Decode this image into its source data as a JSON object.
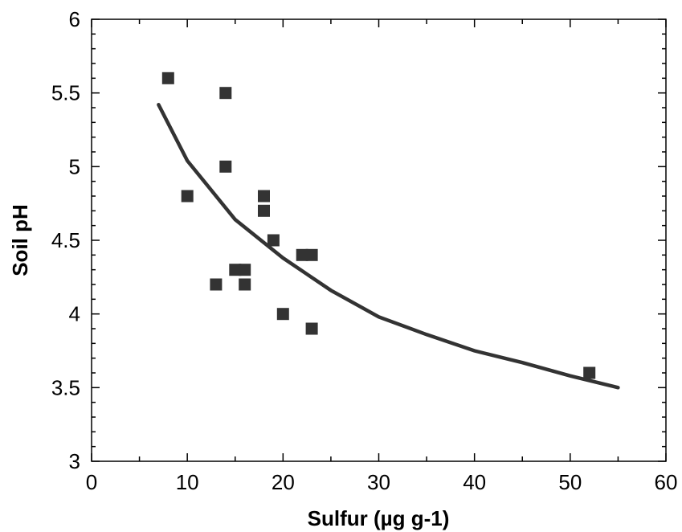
{
  "chart_data": {
    "type": "scatter",
    "title": "",
    "xlabel": "Sulfur (µg g-1)",
    "ylabel": "Soil pH",
    "xlim": [
      0,
      60
    ],
    "ylim": [
      3,
      6
    ],
    "x_ticks": [
      0,
      10,
      20,
      30,
      40,
      50,
      60
    ],
    "y_ticks": [
      3,
      3.5,
      4,
      4.5,
      5,
      5.5,
      6
    ],
    "x_tick_labels": [
      "0",
      "10",
      "20",
      "30",
      "40",
      "50",
      "60"
    ],
    "y_tick_labels": [
      "3",
      "3.5",
      "4",
      "4.5",
      "5",
      "5.5",
      "6"
    ],
    "grid": false,
    "legend": false,
    "series": [
      {
        "type": "scatter",
        "marker": "square",
        "color": "#333333",
        "points": [
          {
            "x": 8,
            "y": 5.6
          },
          {
            "x": 10,
            "y": 4.8
          },
          {
            "x": 13,
            "y": 4.2
          },
          {
            "x": 14,
            "y": 5.5
          },
          {
            "x": 14,
            "y": 5.0
          },
          {
            "x": 15,
            "y": 4.3
          },
          {
            "x": 16,
            "y": 4.3
          },
          {
            "x": 16,
            "y": 4.2
          },
          {
            "x": 18,
            "y": 4.8
          },
          {
            "x": 18,
            "y": 4.7
          },
          {
            "x": 19,
            "y": 4.5
          },
          {
            "x": 20,
            "y": 4.0
          },
          {
            "x": 22,
            "y": 4.4
          },
          {
            "x": 23,
            "y": 4.4
          },
          {
            "x": 23,
            "y": 3.9
          },
          {
            "x": 52,
            "y": 3.6
          }
        ]
      },
      {
        "type": "line",
        "color": "#333333",
        "points": [
          {
            "x": 7,
            "y": 5.42
          },
          {
            "x": 10,
            "y": 5.04
          },
          {
            "x": 15,
            "y": 4.64
          },
          {
            "x": 20,
            "y": 4.38
          },
          {
            "x": 25,
            "y": 4.16
          },
          {
            "x": 30,
            "y": 3.98
          },
          {
            "x": 35,
            "y": 3.86
          },
          {
            "x": 40,
            "y": 3.75
          },
          {
            "x": 45,
            "y": 3.67
          },
          {
            "x": 50,
            "y": 3.58
          },
          {
            "x": 55,
            "y": 3.5
          }
        ]
      }
    ]
  }
}
